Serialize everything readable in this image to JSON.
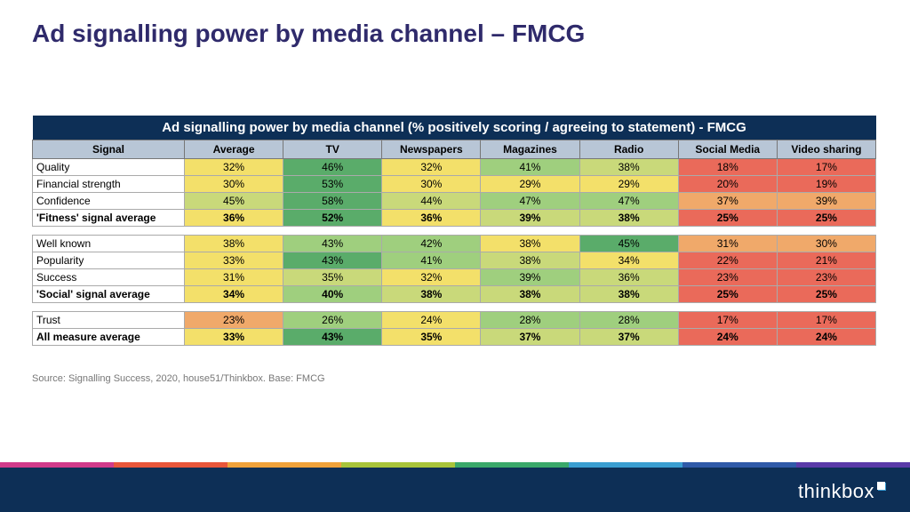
{
  "title": "Ad signalling power by media channel – FMCG",
  "title_color": "#2f2a6b",
  "table": {
    "banner": "Ad signalling power by media channel (% positively scoring / agreeing to statement) - FMCG",
    "banner_bg": "#0d2f56",
    "head_bg": "#b8c6d6",
    "columns": [
      "Signal",
      "Average",
      "TV",
      "Newspapers",
      "Magazines",
      "Radio",
      "Social Media",
      "Video sharing"
    ],
    "col_widths": [
      "18%",
      "11.7%",
      "11.7%",
      "11.7%",
      "11.7%",
      "11.7%",
      "11.7%",
      "11.7%"
    ],
    "rows": [
      {
        "label": "Quality",
        "bold": false,
        "cells": [
          {
            "v": "32%",
            "c": "#f3e06a"
          },
          {
            "v": "46%",
            "c": "#5aac6a"
          },
          {
            "v": "32%",
            "c": "#f3e06a"
          },
          {
            "v": "41%",
            "c": "#9fcf7e"
          },
          {
            "v": "38%",
            "c": "#c9d97a"
          },
          {
            "v": "18%",
            "c": "#ea6a5a"
          },
          {
            "v": "17%",
            "c": "#ea6a5a"
          }
        ]
      },
      {
        "label": "Financial strength",
        "bold": false,
        "cells": [
          {
            "v": "30%",
            "c": "#f3e06a"
          },
          {
            "v": "53%",
            "c": "#5aac6a"
          },
          {
            "v": "30%",
            "c": "#f3e06a"
          },
          {
            "v": "29%",
            "c": "#f3e06a"
          },
          {
            "v": "29%",
            "c": "#f3e06a"
          },
          {
            "v": "20%",
            "c": "#ea6a5a"
          },
          {
            "v": "19%",
            "c": "#ea6a5a"
          }
        ]
      },
      {
        "label": "Confidence",
        "bold": false,
        "cells": [
          {
            "v": "45%",
            "c": "#c9d97a"
          },
          {
            "v": "58%",
            "c": "#5aac6a"
          },
          {
            "v": "44%",
            "c": "#c9d97a"
          },
          {
            "v": "47%",
            "c": "#9fcf7e"
          },
          {
            "v": "47%",
            "c": "#9fcf7e"
          },
          {
            "v": "37%",
            "c": "#f0a96a"
          },
          {
            "v": "39%",
            "c": "#f0a96a"
          }
        ]
      },
      {
        "label": "'Fitness' signal average",
        "bold": true,
        "cells": [
          {
            "v": "36%",
            "c": "#f3e06a"
          },
          {
            "v": "52%",
            "c": "#5aac6a"
          },
          {
            "v": "36%",
            "c": "#f3e06a"
          },
          {
            "v": "39%",
            "c": "#c9d97a"
          },
          {
            "v": "38%",
            "c": "#c9d97a"
          },
          {
            "v": "25%",
            "c": "#ea6a5a"
          },
          {
            "v": "25%",
            "c": "#ea6a5a"
          }
        ]
      },
      {
        "spacer": true
      },
      {
        "label": "Well known",
        "bold": false,
        "cells": [
          {
            "v": "38%",
            "c": "#f3e06a"
          },
          {
            "v": "43%",
            "c": "#9fcf7e"
          },
          {
            "v": "42%",
            "c": "#9fcf7e"
          },
          {
            "v": "38%",
            "c": "#f3e06a"
          },
          {
            "v": "45%",
            "c": "#5aac6a"
          },
          {
            "v": "31%",
            "c": "#f0a96a"
          },
          {
            "v": "30%",
            "c": "#f0a96a"
          }
        ]
      },
      {
        "label": "Popularity",
        "bold": false,
        "cells": [
          {
            "v": "33%",
            "c": "#f3e06a"
          },
          {
            "v": "43%",
            "c": "#5aac6a"
          },
          {
            "v": "41%",
            "c": "#9fcf7e"
          },
          {
            "v": "38%",
            "c": "#c9d97a"
          },
          {
            "v": "34%",
            "c": "#f3e06a"
          },
          {
            "v": "22%",
            "c": "#ea6a5a"
          },
          {
            "v": "21%",
            "c": "#ea6a5a"
          }
        ]
      },
      {
        "label": "Success",
        "bold": false,
        "cells": [
          {
            "v": "31%",
            "c": "#f3e06a"
          },
          {
            "v": "35%",
            "c": "#c9d97a"
          },
          {
            "v": "32%",
            "c": "#f3e06a"
          },
          {
            "v": "39%",
            "c": "#9fcf7e"
          },
          {
            "v": "36%",
            "c": "#c9d97a"
          },
          {
            "v": "23%",
            "c": "#ea6a5a"
          },
          {
            "v": "23%",
            "c": "#ea6a5a"
          }
        ]
      },
      {
        "label": "'Social' signal average",
        "bold": true,
        "cells": [
          {
            "v": "34%",
            "c": "#f3e06a"
          },
          {
            "v": "40%",
            "c": "#9fcf7e"
          },
          {
            "v": "38%",
            "c": "#c9d97a"
          },
          {
            "v": "38%",
            "c": "#c9d97a"
          },
          {
            "v": "38%",
            "c": "#c9d97a"
          },
          {
            "v": "25%",
            "c": "#ea6a5a"
          },
          {
            "v": "25%",
            "c": "#ea6a5a"
          }
        ]
      },
      {
        "spacer": true
      },
      {
        "label": "Trust",
        "bold": false,
        "cells": [
          {
            "v": "23%",
            "c": "#f0a96a"
          },
          {
            "v": "26%",
            "c": "#9fcf7e"
          },
          {
            "v": "24%",
            "c": "#f3e06a"
          },
          {
            "v": "28%",
            "c": "#9fcf7e"
          },
          {
            "v": "28%",
            "c": "#9fcf7e"
          },
          {
            "v": "17%",
            "c": "#ea6a5a"
          },
          {
            "v": "17%",
            "c": "#ea6a5a"
          }
        ]
      },
      {
        "label": "All measure average",
        "bold": true,
        "cells": [
          {
            "v": "33%",
            "c": "#f3e06a"
          },
          {
            "v": "43%",
            "c": "#5aac6a"
          },
          {
            "v": "35%",
            "c": "#f3e06a"
          },
          {
            "v": "37%",
            "c": "#c9d97a"
          },
          {
            "v": "37%",
            "c": "#c9d97a"
          },
          {
            "v": "24%",
            "c": "#ea6a5a"
          },
          {
            "v": "24%",
            "c": "#ea6a5a"
          }
        ]
      }
    ]
  },
  "source": "Source: Signalling Success, 2020, house51/Thinkbox. Base: FMCG",
  "stripe_colors": [
    "#d13a8a",
    "#e8563a",
    "#f0a23a",
    "#a8c43a",
    "#3aa86a",
    "#3a9ed1",
    "#2f5aa8",
    "#5a3aa8"
  ],
  "footer_bg": "#0d2f56",
  "logo_text": "thinkbox"
}
